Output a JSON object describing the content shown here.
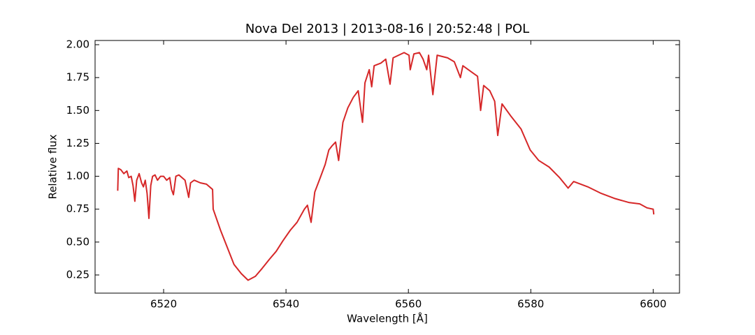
{
  "chart_data": {
    "type": "line",
    "title": "Nova Del 2013 | 2013-08-16 | 20:52:48 | POL",
    "x_label": "Wavelength [Å]",
    "y_label": "Relative flux",
    "xlim": [
      6508.8,
      6604.3
    ],
    "ylim": [
      0.112,
      2.032
    ],
    "xticks": [
      6520,
      6540,
      6560,
      6580,
      6600
    ],
    "yticks": [
      0.25,
      {
        "value": 0.5,
        "label": "0.50"
      },
      0.75,
      {
        "value": 1.0,
        "label": "1.00"
      },
      1.25,
      {
        "value": 1.5,
        "label": "1.50"
      },
      1.75,
      {
        "value": 2.0,
        "label": "2.00"
      }
    ],
    "series": [
      {
        "color": "#d62728",
        "x": [
          6512.5,
          6512.6,
          6513.0,
          6513.5,
          6514.0,
          6514.3,
          6514.7,
          6515.0,
          6515.3,
          6515.6,
          6516.0,
          6516.4,
          6516.7,
          6517.0,
          6517.3,
          6517.6,
          6517.9,
          6518.2,
          6518.6,
          6519.0,
          6519.5,
          6520.0,
          6520.5,
          6521.0,
          6521.3,
          6521.6,
          6522.0,
          6522.5,
          6523.0,
          6523.5,
          6524.1,
          6524.4,
          6525.0,
          6526.0,
          6527.0,
          6528.0,
          6528.1,
          6529.3,
          6530.4,
          6531.5,
          6532.7,
          6533.8,
          6535.0,
          6536.1,
          6537.3,
          6538.4,
          6539.5,
          6540.7,
          6541.8,
          6543.0,
          6543.5,
          6544.1,
          6544.7,
          6545.6,
          6546.4,
          6547.0,
          6547.5,
          6548.1,
          6548.6,
          6549.3,
          6550.1,
          6551.0,
          6551.8,
          6552.5,
          6552.9,
          6553.6,
          6554.0,
          6554.4,
          6555.5,
          6556.3,
          6557.0,
          6557.5,
          6558.4,
          6559.3,
          6560.1,
          6560.3,
          6560.9,
          6561.8,
          6562.4,
          6563.0,
          6563.3,
          6564.0,
          6564.7,
          6566.4,
          6567.5,
          6568.5,
          6568.9,
          6570.4,
          6571.3,
          6571.8,
          6572.3,
          6573.3,
          6574.1,
          6574.6,
          6575.3,
          6576.7,
          6578.4,
          6579.9,
          6581.3,
          6583.0,
          6584.7,
          6586.1,
          6587.0,
          6589.3,
          6591.5,
          6593.8,
          6596.1,
          6597.8,
          6599.0,
          6600.0,
          6600.1
        ],
        "values": [
          0.89,
          1.06,
          1.05,
          1.02,
          1.04,
          0.99,
          1.0,
          0.93,
          0.81,
          0.97,
          1.02,
          0.95,
          0.92,
          0.97,
          0.87,
          0.68,
          0.93,
          1.0,
          1.01,
          0.97,
          1.0,
          1.0,
          0.97,
          0.99,
          0.9,
          0.86,
          1.0,
          1.01,
          0.99,
          0.97,
          0.84,
          0.95,
          0.97,
          0.95,
          0.94,
          0.9,
          0.75,
          0.59,
          0.46,
          0.33,
          0.26,
          0.21,
          0.24,
          0.3,
          0.37,
          0.43,
          0.51,
          0.59,
          0.65,
          0.75,
          0.78,
          0.65,
          0.88,
          0.99,
          1.09,
          1.2,
          1.23,
          1.26,
          1.12,
          1.41,
          1.52,
          1.6,
          1.65,
          1.41,
          1.71,
          1.81,
          1.68,
          1.84,
          1.86,
          1.89,
          1.7,
          1.9,
          1.92,
          1.94,
          1.92,
          1.81,
          1.93,
          1.94,
          1.89,
          1.81,
          1.92,
          1.62,
          1.92,
          1.9,
          1.87,
          1.75,
          1.84,
          1.79,
          1.76,
          1.5,
          1.69,
          1.65,
          1.57,
          1.31,
          1.55,
          1.46,
          1.36,
          1.2,
          1.12,
          1.07,
          0.99,
          0.91,
          0.96,
          0.92,
          0.87,
          0.83,
          0.8,
          0.79,
          0.76,
          0.75,
          0.71
        ]
      }
    ]
  }
}
